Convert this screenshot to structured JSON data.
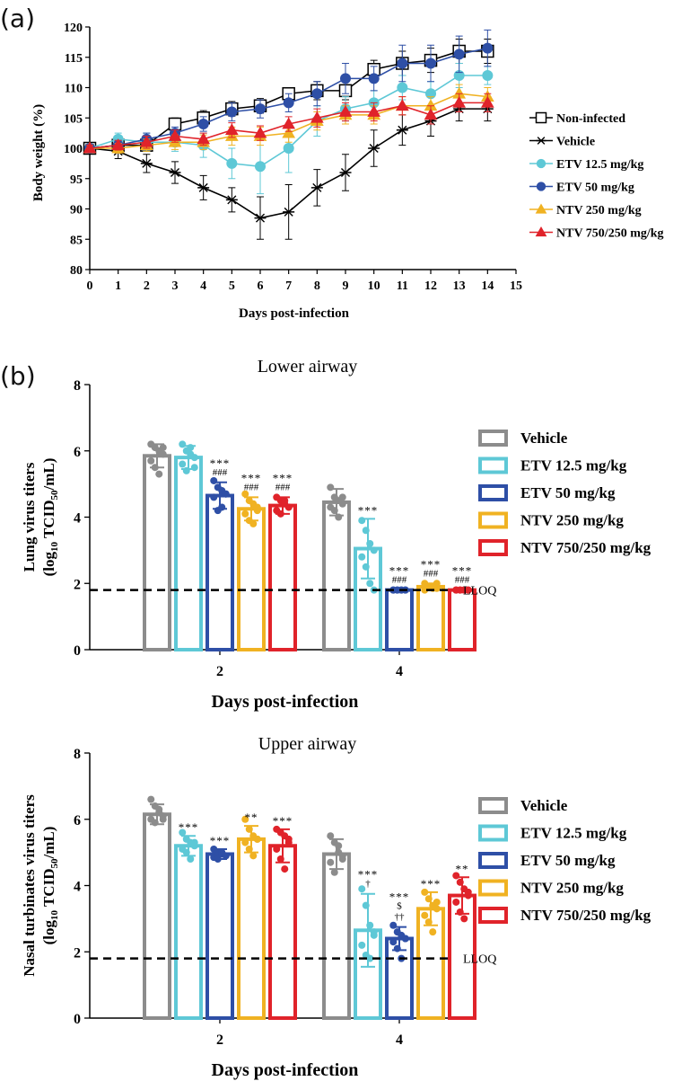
{
  "panel_labels": {
    "a": "(a)",
    "b": "(b)"
  },
  "lloq_label": "LLOQ",
  "colors": {
    "Non-infected": "#000000",
    "Vehicle": "#000000",
    "Vehicle_bar": "#8c8c8c",
    "ETV 12.5 mg/kg": "#5ec8d6",
    "ETV 50 mg/kg": "#2e4fa6",
    "NTV 250 mg/kg": "#f0b222",
    "NTV 750/250 mg/kg": "#e0232a"
  },
  "chart_data": [
    {
      "id": "weight",
      "type": "line",
      "title": "",
      "xlabel": "Days post-infection",
      "ylabel": "Body weight (%)",
      "xlim": [
        0,
        15
      ],
      "ylim": [
        80,
        120
      ],
      "xticks": [
        0,
        1,
        2,
        3,
        4,
        5,
        6,
        7,
        8,
        9,
        10,
        11,
        12,
        13,
        14,
        15
      ],
      "yticks": [
        80,
        85,
        90,
        95,
        100,
        105,
        110,
        115,
        120
      ],
      "x": [
        0,
        1,
        2,
        3,
        4,
        5,
        6,
        7,
        8,
        9,
        10,
        11,
        12,
        13,
        14
      ],
      "legend_position": "right",
      "series": [
        {
          "name": "Non-infected",
          "marker": "open-square",
          "values": [
            100,
            100.5,
            100.5,
            104,
            105,
            106.5,
            107,
            109,
            109.5,
            109.5,
            113,
            114,
            114.5,
            116,
            116
          ],
          "errors": [
            0.5,
            0.8,
            1.0,
            1.0,
            1.2,
            1.2,
            1.2,
            1.0,
            1.5,
            1.5,
            1.5,
            2.0,
            2.0,
            2.0,
            2.0
          ]
        },
        {
          "name": "Vehicle",
          "marker": "star",
          "values": [
            100,
            99.5,
            97.5,
            96,
            93.5,
            91.5,
            88.5,
            89.5,
            93.5,
            96,
            100,
            103,
            104.5,
            106.5,
            106.5
          ],
          "errors": [
            0.5,
            1.2,
            1.5,
            1.8,
            2.0,
            2.0,
            3.5,
            4.5,
            3.0,
            3.0,
            3.0,
            2.5,
            2.5,
            2.0,
            2.0
          ]
        },
        {
          "name": "ETV 12.5 mg/kg",
          "marker": "circle",
          "values": [
            100,
            101.5,
            101,
            101,
            100.5,
            97.5,
            97,
            100,
            104.5,
            106.5,
            107.5,
            110,
            109,
            112,
            112
          ],
          "errors": [
            0.5,
            1.0,
            1.5,
            1.5,
            2.0,
            2.5,
            4.5,
            4.0,
            2.5,
            2.0,
            2.0,
            2.0,
            2.0,
            2.0,
            1.5
          ]
        },
        {
          "name": "ETV 50 mg/kg",
          "marker": "circle",
          "values": [
            100,
            100.5,
            101.5,
            102.5,
            104,
            106,
            106.5,
            107.5,
            109,
            111.5,
            111.5,
            114,
            114,
            115.5,
            116.5
          ],
          "errors": [
            0.5,
            0.8,
            1.0,
            1.0,
            1.2,
            1.5,
            1.5,
            1.5,
            2.0,
            2.5,
            2.0,
            3.0,
            3.0,
            3.0,
            3.0
          ]
        },
        {
          "name": "NTV 250 mg/kg",
          "marker": "triangle",
          "values": [
            100,
            100,
            100.5,
            101,
            101,
            102,
            102,
            102.5,
            104.5,
            105.5,
            105.5,
            107,
            107,
            109,
            108.5
          ],
          "errors": [
            0.5,
            0.8,
            1.0,
            1.2,
            1.2,
            1.5,
            1.5,
            1.5,
            1.5,
            1.5,
            1.5,
            1.5,
            1.5,
            1.5,
            1.5
          ]
        },
        {
          "name": "NTV 750/250 mg/kg",
          "marker": "triangle",
          "values": [
            100,
            100.5,
            101,
            102,
            101.5,
            103,
            102.5,
            104,
            105,
            106,
            106,
            107,
            105.5,
            107.5,
            107.5
          ],
          "errors": [
            0.5,
            0.8,
            1.0,
            1.0,
            1.0,
            1.2,
            1.2,
            1.2,
            1.5,
            1.5,
            1.5,
            1.5,
            1.5,
            1.5,
            1.5
          ]
        }
      ]
    },
    {
      "id": "lower",
      "type": "bar",
      "title": "Lower airway",
      "xlabel": "Days post-infection",
      "ylabel_line1": "Lung virus titers",
      "ylabel_line2_pre": "(log",
      "ylabel_sub1": "10",
      "ylabel_mid": " TCID",
      "ylabel_sub2": "50",
      "ylabel_post": "/mL)",
      "ylim": [
        0,
        8
      ],
      "yticks": [
        0,
        2,
        4,
        6,
        8
      ],
      "lloq": 1.8,
      "categories": [
        "2",
        "4"
      ],
      "legend_position": "right",
      "series": [
        {
          "name": "Vehicle",
          "values": [
            5.85,
            4.45
          ],
          "errors": [
            0.35,
            0.4
          ],
          "annot_top": [
            "",
            ""
          ],
          "annot_bottom": [
            "",
            ""
          ],
          "points": [
            [
              6.2,
              6.1,
              6.0,
              5.9,
              5.7,
              5.5,
              5.3,
              6.1
            ],
            [
              4.9,
              4.6,
              4.5,
              4.4,
              4.3,
              4.2,
              4.0,
              4.6
            ]
          ]
        },
        {
          "name": "ETV 12.5 mg/kg",
          "values": [
            5.8,
            3.05
          ],
          "errors": [
            0.35,
            0.9
          ],
          "annot_top": [
            "",
            "***"
          ],
          "annot_bottom": [
            "",
            ""
          ],
          "points": [
            [
              6.2,
              6.0,
              5.9,
              5.8,
              5.6,
              5.4,
              6.1,
              5.5
            ],
            [
              3.9,
              3.6,
              3.2,
              3.0,
              2.8,
              2.5,
              2.0,
              1.8
            ]
          ]
        },
        {
          "name": "ETV 50 mg/kg",
          "values": [
            4.65,
            1.8
          ],
          "errors": [
            0.4,
            0.0
          ],
          "annot_top": [
            "***",
            "***"
          ],
          "annot_bottom": [
            "###",
            "###"
          ],
          "points": [
            [
              5.1,
              4.9,
              4.8,
              4.7,
              4.6,
              4.2,
              4.3,
              4.7
            ],
            [
              1.8,
              1.8,
              1.8,
              1.8,
              1.8,
              1.8,
              1.8,
              1.8
            ]
          ]
        },
        {
          "name": "NTV 250 mg/kg",
          "values": [
            4.25,
            1.9
          ],
          "errors": [
            0.35,
            0.1
          ],
          "annot_top": [
            "***",
            "***"
          ],
          "annot_bottom": [
            "###",
            "###"
          ],
          "points": [
            [
              4.7,
              4.5,
              4.4,
              4.2,
              4.1,
              3.9,
              3.8,
              4.3
            ],
            [
              2.0,
              1.9,
              1.9,
              1.85,
              1.8,
              1.9,
              1.85,
              2.0
            ]
          ]
        },
        {
          "name": "NTV 750/250 mg/kg",
          "values": [
            4.35,
            1.8
          ],
          "errors": [
            0.25,
            0.0
          ],
          "annot_top": [
            "***",
            "***"
          ],
          "annot_bottom": [
            "###",
            "###"
          ],
          "points": [
            [
              4.6,
              4.5,
              4.4,
              4.3,
              4.2,
              4.1,
              4.5,
              4.3
            ],
            [
              1.8,
              1.8,
              1.8,
              1.8,
              1.8,
              1.8,
              1.8,
              1.8
            ]
          ]
        }
      ]
    },
    {
      "id": "upper",
      "type": "bar",
      "title": "Upper airway",
      "xlabel": "Days post-infection",
      "ylabel_line1": "Nasal turbinates virus titers",
      "ylabel_line2_pre": "(log",
      "ylabel_sub1": "10",
      "ylabel_mid": " TCID",
      "ylabel_sub2": "50",
      "ylabel_post": "/mL)",
      "ylim": [
        0,
        8
      ],
      "yticks": [
        0,
        2,
        4,
        6,
        8
      ],
      "lloq": 1.8,
      "categories": [
        "2",
        "4"
      ],
      "legend_position": "right",
      "series": [
        {
          "name": "Vehicle",
          "values": [
            6.15,
            4.95
          ],
          "errors": [
            0.3,
            0.45
          ],
          "annot_top": [
            "",
            ""
          ],
          "annot_bottom": [
            "",
            ""
          ],
          "points": [
            [
              6.6,
              6.4,
              6.2,
              6.1,
              6.0,
              5.9,
              6.3,
              6.0
            ],
            [
              5.5,
              5.3,
              5.0,
              4.9,
              4.7,
              4.4,
              5.2,
              4.8
            ]
          ]
        },
        {
          "name": "ETV 12.5 mg/kg",
          "values": [
            5.2,
            2.65
          ],
          "errors": [
            0.3,
            1.1
          ],
          "annot_top": [
            "***",
            "***"
          ],
          "annot_bottom": [
            "",
            "†"
          ],
          "points": [
            [
              5.6,
              5.4,
              5.3,
              5.2,
              5.1,
              5.0,
              4.8,
              5.3
            ],
            [
              3.9,
              3.4,
              2.8,
              2.5,
              2.2,
              1.9,
              1.8,
              2.6
            ]
          ]
        },
        {
          "name": "ETV 50 mg/kg",
          "values": [
            4.95,
            2.4
          ],
          "errors": [
            0.15,
            0.35
          ],
          "annot_top": [
            "***",
            "***"
          ],
          "annot_bottom": [
            "",
            "$"
          ],
          "annot_bottom2": [
            "",
            "††"
          ],
          "points": [
            [
              5.1,
              5.0,
              4.95,
              4.9,
              4.85,
              4.8,
              5.0,
              4.9
            ],
            [
              2.8,
              2.6,
              2.5,
              2.4,
              2.3,
              2.1,
              1.8,
              2.4
            ]
          ]
        },
        {
          "name": "NTV 250 mg/kg",
          "values": [
            5.4,
            3.3
          ],
          "errors": [
            0.4,
            0.5
          ],
          "annot_top": [
            "**",
            "***"
          ],
          "annot_bottom": [
            "",
            ""
          ],
          "points": [
            [
              6.0,
              5.7,
              5.5,
              5.4,
              5.3,
              5.1,
              4.9,
              5.4
            ],
            [
              3.8,
              3.6,
              3.4,
              3.3,
              3.1,
              2.9,
              2.6,
              3.5
            ]
          ]
        },
        {
          "name": "NTV 750/250 mg/kg",
          "values": [
            5.2,
            3.7
          ],
          "errors": [
            0.5,
            0.55
          ],
          "annot_top": [
            "***",
            "**"
          ],
          "annot_bottom": [
            "",
            ""
          ],
          "points": [
            [
              5.7,
              5.6,
              5.5,
              5.3,
              5.1,
              4.8,
              4.5,
              5.4
            ],
            [
              4.3,
              4.1,
              3.9,
              3.7,
              3.5,
              3.2,
              3.0,
              3.8
            ]
          ]
        }
      ]
    }
  ]
}
